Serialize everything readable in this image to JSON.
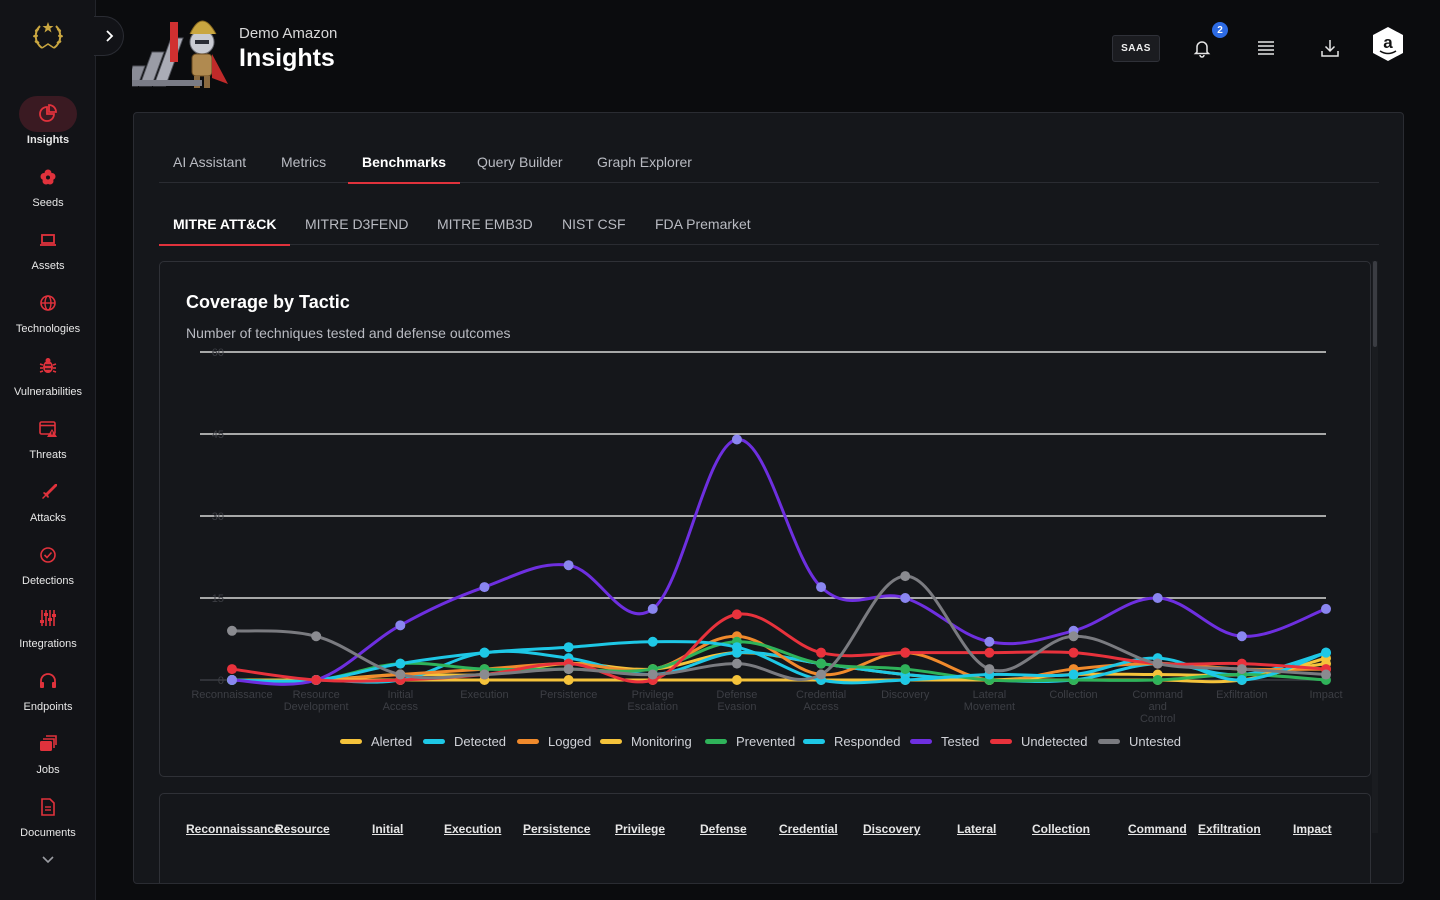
{
  "header": {
    "org_name": "Demo Amazon",
    "title": "Insights",
    "plan_badge": "SAAS",
    "notification_count": "2"
  },
  "sidebar": {
    "items": [
      {
        "label": "Insights",
        "icon": "pie-chart-icon",
        "active": true
      },
      {
        "label": "Seeds",
        "icon": "flower-icon"
      },
      {
        "label": "Assets",
        "icon": "laptop-icon"
      },
      {
        "label": "Technologies",
        "icon": "globe-icon"
      },
      {
        "label": "Vulnerabilities",
        "icon": "bug-icon"
      },
      {
        "label": "Threats",
        "icon": "threat-window-icon"
      },
      {
        "label": "Attacks",
        "icon": "sword-icon"
      },
      {
        "label": "Detections",
        "icon": "check-circle-icon"
      },
      {
        "label": "Integrations",
        "icon": "sliders-icon"
      },
      {
        "label": "Endpoints",
        "icon": "headset-icon"
      },
      {
        "label": "Jobs",
        "icon": "stack-icon"
      },
      {
        "label": "Documents",
        "icon": "document-icon"
      }
    ]
  },
  "tabs": {
    "primary": [
      "AI Assistant",
      "Metrics",
      "Benchmarks",
      "Query Builder",
      "Graph Explorer"
    ],
    "primary_active": 2,
    "secondary": [
      "MITRE ATT&CK",
      "MITRE D3FEND",
      "MITRE EMB3D",
      "NIST CSF",
      "FDA Premarket"
    ],
    "secondary_active": 0
  },
  "chart": {
    "title": "Coverage by Tactic",
    "subtitle": "Number of techniques tested and defense outcomes"
  },
  "chart_data": {
    "type": "line",
    "categories": [
      [
        "Reconnaissance"
      ],
      [
        "Resource",
        "Development"
      ],
      [
        "Initial",
        "Access"
      ],
      [
        "Execution"
      ],
      [
        "Persistence"
      ],
      [
        "Privilege",
        "Escalation"
      ],
      [
        "Defense",
        "Evasion"
      ],
      [
        "Credential",
        "Access"
      ],
      [
        "Discovery"
      ],
      [
        "Lateral",
        "Movement"
      ],
      [
        "Collection"
      ],
      [
        "Command",
        "and",
        "Control"
      ],
      [
        "Exfiltration"
      ],
      [
        "Impact"
      ]
    ],
    "yticks": [
      0,
      15,
      30,
      45,
      60
    ],
    "ylim": [
      0,
      60
    ],
    "grid": true,
    "legend": "bottom",
    "series": [
      {
        "name": "Alerted",
        "color": "#f5c33b",
        "values": [
          0,
          0,
          1,
          1,
          3,
          2,
          5,
          3,
          1,
          0,
          1,
          1,
          1,
          3
        ]
      },
      {
        "name": "Detected",
        "color": "#1ec8e6",
        "values": [
          0,
          0,
          0,
          5,
          4,
          1,
          5,
          3,
          1,
          0,
          0,
          3,
          1,
          5
        ]
      },
      {
        "name": "Logged",
        "color": "#f08a2c",
        "values": [
          0,
          0,
          1,
          2,
          3,
          2,
          8,
          1,
          5,
          0,
          2,
          3,
          2,
          2
        ]
      },
      {
        "name": "Monitoring",
        "color": "#f5c33b",
        "values": [
          0,
          0,
          0,
          0,
          0,
          0,
          0,
          0,
          0,
          0,
          0,
          0,
          0,
          4
        ]
      },
      {
        "name": "Prevented",
        "color": "#2fb35a",
        "values": [
          0,
          0,
          3,
          2,
          2,
          2,
          7,
          3,
          2,
          0,
          0,
          0,
          1,
          0
        ]
      },
      {
        "name": "Responded",
        "color": "#1ec8e6",
        "values": [
          0,
          0,
          3,
          5,
          6,
          7,
          6,
          0,
          0,
          1,
          1,
          4,
          0,
          5
        ]
      },
      {
        "name": "Tested",
        "color": "#6e2fe0",
        "values": [
          0,
          0,
          10,
          17,
          21,
          13,
          44,
          17,
          15,
          7,
          9,
          15,
          8,
          13
        ]
      },
      {
        "name": "Undetected",
        "color": "#e8323c",
        "values": [
          2,
          0,
          0,
          1,
          3,
          0,
          12,
          5,
          5,
          5,
          5,
          3,
          3,
          2
        ]
      },
      {
        "name": "Untested",
        "color": "#7a7b80",
        "values": [
          9,
          8,
          1,
          1,
          2,
          1,
          3,
          1,
          19,
          2,
          8,
          3,
          2,
          1
        ]
      }
    ]
  },
  "table": {
    "headers": [
      "Reconnaissance",
      "Resource",
      "Initial",
      "Execution",
      "Persistence",
      "Privilege",
      "Defense",
      "Credential",
      "Discovery",
      "Lateral",
      "Collection",
      "Command",
      "Exfiltration",
      "Impact"
    ]
  }
}
